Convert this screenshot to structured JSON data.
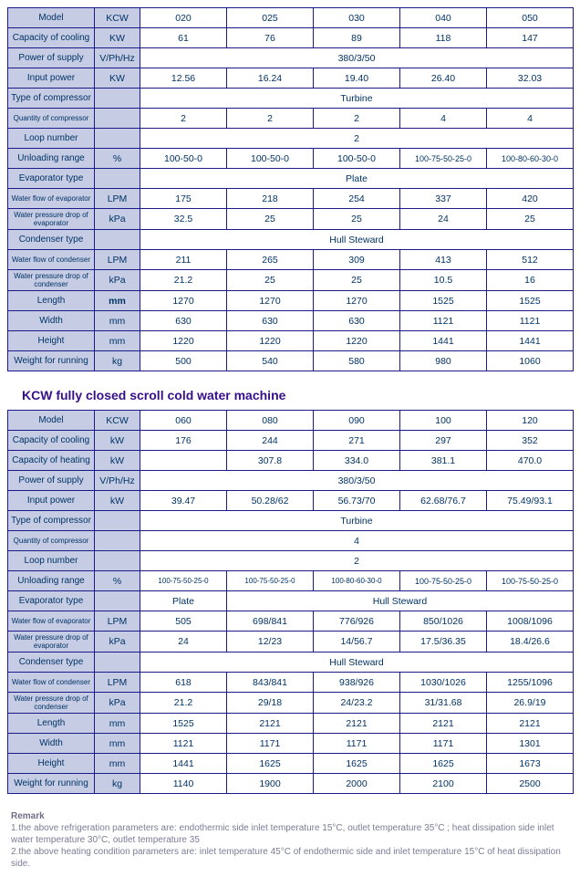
{
  "table1": {
    "row_labels": [
      "Model",
      "Capacity of cooling",
      "Power of supply",
      "Input power",
      "Type of compressor",
      "Quantity of compressor",
      "Loop number",
      "Unloading range",
      "Evaporator type",
      "Water flow of evaporator",
      "Water pressure drop of evaporator",
      "Condenser type",
      "Water flow of condenser",
      "Water pressure drop of condenser",
      "Length",
      "Width",
      "Height",
      "Weight for running"
    ],
    "units": [
      "KCW",
      "KW",
      "V/Ph/Hz",
      "KW",
      "",
      "",
      "",
      "%",
      "",
      "LPM",
      "kPa",
      "",
      "LPM",
      "kPa",
      "mm",
      "mm",
      "mm",
      "kg"
    ],
    "model_cols": [
      "020",
      "025",
      "030",
      "040",
      "050"
    ],
    "cap_cool": [
      "61",
      "76",
      "89",
      "118",
      "147"
    ],
    "power_supply_span": "380/3/50",
    "input_power": [
      "12.56",
      "16.24",
      "19.40",
      "26.40",
      "32.03"
    ],
    "comp_type_span": "Turbine",
    "qty_comp": [
      "2",
      "2",
      "2",
      "4",
      "4"
    ],
    "loop_span": "2",
    "unloading": [
      "100-50-0",
      "100-50-0",
      "100-50-0",
      "100-75-50-25-0",
      "100-80-60-30-0"
    ],
    "evap_type_span": "Plate",
    "evap_flow": [
      "175",
      "218",
      "254",
      "337",
      "420"
    ],
    "evap_drop": [
      "32.5",
      "25",
      "25",
      "24",
      "25"
    ],
    "cond_type_span": "Hull Steward",
    "cond_flow": [
      "211",
      "265",
      "309",
      "413",
      "512"
    ],
    "cond_drop": [
      "21.2",
      "25",
      "25",
      "10.5",
      "16"
    ],
    "length": [
      "1270",
      "1270",
      "1270",
      "1525",
      "1525"
    ],
    "width": [
      "630",
      "630",
      "630",
      "1121",
      "1121"
    ],
    "height": [
      "1220",
      "1220",
      "1220",
      "1441",
      "1441"
    ],
    "weight": [
      "500",
      "540",
      "580",
      "980",
      "1060"
    ]
  },
  "heading2": "KCW fully closed scroll cold water machine",
  "table2": {
    "row_labels": [
      "Model",
      "Capacity of cooling",
      "Capacity of heating",
      "Power of supply",
      "Input power",
      "Type of compressor",
      "Quantity of compressor",
      "Loop number",
      "Unloading range",
      "Evaporator type",
      "Water flow of evaporator",
      "Water pressure drop of evaporator",
      "Condenser type",
      "Water flow of condenser",
      "Water pressure drop of condenser",
      "Length",
      "Width",
      "Height",
      "Weight for running"
    ],
    "units": [
      "KCW",
      "kW",
      "kW",
      "V/Ph/Hz",
      "kW",
      "",
      "",
      "",
      "%",
      "",
      "LPM",
      "kPa",
      "",
      "LPM",
      "kPa",
      "mm",
      "mm",
      "mm",
      "kg"
    ],
    "model_cols": [
      "060",
      "080",
      "090",
      "100",
      "120"
    ],
    "cap_cool": [
      "176",
      "244",
      "271",
      "297",
      "352"
    ],
    "cap_heat": [
      "",
      "307.8",
      "334.0",
      "381.1",
      "470.0"
    ],
    "power_supply_span": "380/3/50",
    "input_power": [
      "39.47",
      "50.28/62",
      "56.73/70",
      "62.68/76.7",
      "75.49/93.1"
    ],
    "comp_type_span": "Turbine",
    "qty_comp_span": "4",
    "loop_span": "2",
    "unloading": [
      "100-75-50-25-0",
      "100-75-50-25-0",
      "100-80-60-30-0",
      "100-75-50-25-0",
      "100-75-50-25-0"
    ],
    "evap_type_1": "Plate",
    "evap_type_2": "Hull Steward",
    "evap_flow": [
      "505",
      "698/841",
      "776/926",
      "850/1026",
      "1008/1096"
    ],
    "evap_drop": [
      "24",
      "12/23",
      "14/56.7",
      "17.5/36.35",
      "18.4/26.6"
    ],
    "cond_type_span": "Hull Steward",
    "cond_flow": [
      "618",
      "843/841",
      "938/926",
      "1030/1026",
      "1255/1096"
    ],
    "cond_drop": [
      "21.2",
      "29/18",
      "24/23.2",
      "31/31.68",
      "26.9/19"
    ],
    "length": [
      "1525",
      "2121",
      "2121",
      "2121",
      "2121"
    ],
    "width": [
      "1121",
      "1171",
      "1171",
      "1171",
      "1301"
    ],
    "height": [
      "1441",
      "1625",
      "1625",
      "1625",
      "1673"
    ],
    "weight": [
      "1140",
      "1900",
      "2000",
      "2100",
      "2500"
    ]
  },
  "remark": {
    "title": "Remark",
    "line1": "1.the above refrigeration parameters are: endothermic side inlet temperature 15°C, outlet temperature 35°C ; heat dissipation side inlet water temperature 30°C, outlet temperature 35",
    "line2": "2.the above heating condition parameters are: inlet temperature 45°C of endothermic side and inlet temperature 15°C of heat dissipation side."
  }
}
